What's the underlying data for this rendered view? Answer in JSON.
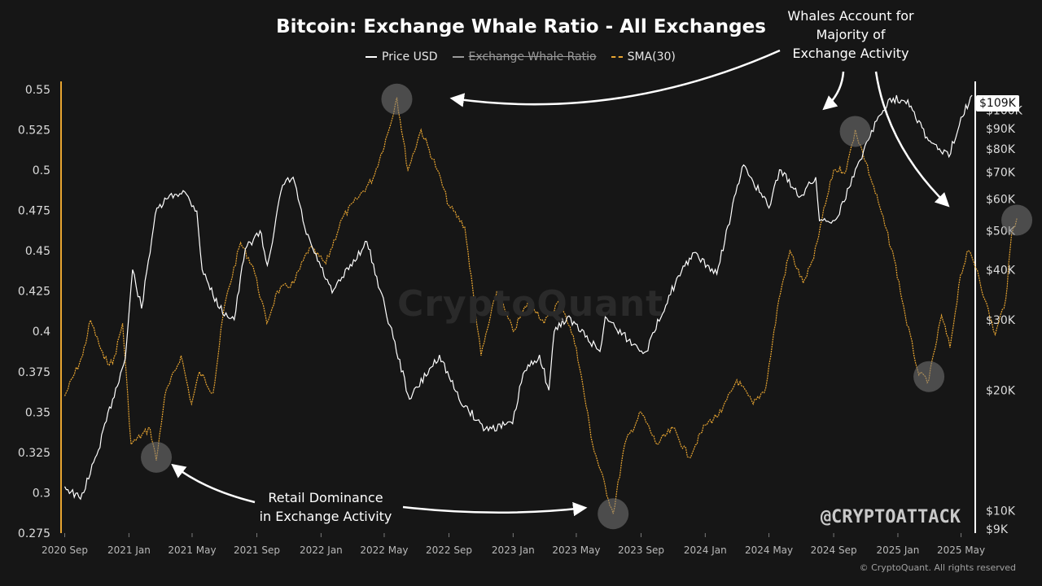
{
  "title": "Bitcoin: Exchange Whale Ratio - All Exchanges",
  "legend": [
    {
      "label": "Price USD",
      "style": "solid",
      "color": "#ffffff",
      "struck": false
    },
    {
      "label": "Exchange Whale Ratio",
      "style": "solid",
      "color": "#9a9a9a",
      "struck": true
    },
    {
      "label": "SMA(30)",
      "style": "dashed",
      "color": "#e8a531",
      "struck": false
    }
  ],
  "watermark": "CryptoQuant",
  "handle": "@CRYPTOATTACK",
  "copyright": "© CryptoQuant. All rights reserved",
  "current_price_label": "$109K",
  "annotations": {
    "whales_line1": "Whales Account for",
    "whales_line2": "Majority of",
    "whales_line3": "Exchange Activity",
    "retail_line1": "Retail Dominance",
    "retail_line2": "in Exchange Activity"
  },
  "colors": {
    "price": "#ffffff",
    "sma": "#e8a531",
    "axis_left": "#e8a531",
    "axis_right": "#ffffff",
    "highlight": "#7a7a7a"
  },
  "chart_data": {
    "type": "line",
    "title": "Bitcoin: Exchange Whale Ratio - All Exchanges",
    "x_ticks": [
      "2020 Sep",
      "2021 Jan",
      "2021 May",
      "2021 Sep",
      "2022 Jan",
      "2022 May",
      "2022 Sep",
      "2023 Jan",
      "2023 May",
      "2023 Sep",
      "2024 Jan",
      "2024 May",
      "2024 Sep",
      "2025 Jan",
      "2025 May"
    ],
    "x_range": [
      "2020-08-25",
      "2025-05-28"
    ],
    "y_left": {
      "ticks": [
        "0.55",
        "0.525",
        "0.5",
        "0.475",
        "0.45",
        "0.425",
        "0.4",
        "0.375",
        "0.35",
        "0.325",
        "0.3",
        "0.275"
      ],
      "ylim": [
        0.275,
        0.555
      ]
    },
    "y_right": {
      "scale": "log",
      "ticks": [
        "$100K",
        "$90K",
        "$80K",
        "$70K",
        "$60K",
        "$50K",
        "$40K",
        "$30K",
        "$20K",
        "$10K",
        "$9K"
      ],
      "tick_values": [
        100000,
        90000,
        80000,
        70000,
        60000,
        50000,
        40000,
        30000,
        20000,
        10000,
        9000
      ],
      "ylim": [
        8800,
        118000
      ]
    },
    "grid": false,
    "legend_position": "top-center",
    "series": [
      {
        "name": "Price USD",
        "axis": "right",
        "points": [
          [
            "2020-09-01",
            11500
          ],
          [
            "2020-10-01",
            10700
          ],
          [
            "2020-11-01",
            13800
          ],
          [
            "2020-12-01",
            19000
          ],
          [
            "2020-12-25",
            24000
          ],
          [
            "2021-01-08",
            40000
          ],
          [
            "2021-01-25",
            32000
          ],
          [
            "2021-02-20",
            55000
          ],
          [
            "2021-03-13",
            60000
          ],
          [
            "2021-04-14",
            63000
          ],
          [
            "2021-05-10",
            56000
          ],
          [
            "2021-05-20",
            40000
          ],
          [
            "2021-06-22",
            32000
          ],
          [
            "2021-07-20",
            30000
          ],
          [
            "2021-08-10",
            45000
          ],
          [
            "2021-09-07",
            50000
          ],
          [
            "2021-09-21",
            41000
          ],
          [
            "2021-10-20",
            65000
          ],
          [
            "2021-11-09",
            68000
          ],
          [
            "2021-12-04",
            49000
          ],
          [
            "2022-01-22",
            35000
          ],
          [
            "2022-03-29",
            47000
          ],
          [
            "2022-05-12",
            29000
          ],
          [
            "2022-06-18",
            19000
          ],
          [
            "2022-08-14",
            24500
          ],
          [
            "2022-09-20",
            19000
          ],
          [
            "2022-11-09",
            16000
          ],
          [
            "2022-12-31",
            16500
          ],
          [
            "2023-01-20",
            22000
          ],
          [
            "2023-02-20",
            24500
          ],
          [
            "2023-03-10",
            20000
          ],
          [
            "2023-03-20",
            28000
          ],
          [
            "2023-04-14",
            30500
          ],
          [
            "2023-06-15",
            25000
          ],
          [
            "2023-06-25",
            30500
          ],
          [
            "2023-08-17",
            26000
          ],
          [
            "2023-09-11",
            25000
          ],
          [
            "2023-10-24",
            34500
          ],
          [
            "2023-12-08",
            44000
          ],
          [
            "2024-01-23",
            39000
          ],
          [
            "2024-02-28",
            62000
          ],
          [
            "2024-03-14",
            73000
          ],
          [
            "2024-05-01",
            57000
          ],
          [
            "2024-05-21",
            71000
          ],
          [
            "2024-06-30",
            61000
          ],
          [
            "2024-07-29",
            68000
          ],
          [
            "2024-08-05",
            53000
          ],
          [
            "2024-09-06",
            53500
          ],
          [
            "2024-09-30",
            64000
          ],
          [
            "2024-11-12",
            89000
          ],
          [
            "2024-12-17",
            107000
          ],
          [
            "2025-01-20",
            106000
          ],
          [
            "2025-02-28",
            84000
          ],
          [
            "2025-04-08",
            76500
          ],
          [
            "2025-05-01",
            96000
          ],
          [
            "2025-05-22",
            109000
          ]
        ]
      },
      {
        "name": "SMA(30)",
        "axis": "left",
        "points": [
          [
            "2020-09-01",
            0.36
          ],
          [
            "2020-10-05",
            0.385
          ],
          [
            "2020-10-20",
            0.407
          ],
          [
            "2020-11-15",
            0.383
          ],
          [
            "2020-12-01",
            0.38
          ],
          [
            "2020-12-20",
            0.405
          ],
          [
            "2021-01-05",
            0.33
          ],
          [
            "2021-02-10",
            0.34
          ],
          [
            "2021-02-22",
            0.32
          ],
          [
            "2021-03-10",
            0.36
          ],
          [
            "2021-04-10",
            0.385
          ],
          [
            "2021-04-30",
            0.355
          ],
          [
            "2021-05-15",
            0.375
          ],
          [
            "2021-06-10",
            0.362
          ],
          [
            "2021-07-01",
            0.415
          ],
          [
            "2021-08-01",
            0.455
          ],
          [
            "2021-08-25",
            0.44
          ],
          [
            "2021-09-20",
            0.405
          ],
          [
            "2021-10-10",
            0.425
          ],
          [
            "2021-11-10",
            0.43
          ],
          [
            "2021-12-10",
            0.452
          ],
          [
            "2022-01-10",
            0.442
          ],
          [
            "2022-02-10",
            0.47
          ],
          [
            "2022-03-10",
            0.482
          ],
          [
            "2022-04-10",
            0.495
          ],
          [
            "2022-05-10",
            0.525
          ],
          [
            "2022-05-25",
            0.545
          ],
          [
            "2022-06-15",
            0.5
          ],
          [
            "2022-07-10",
            0.525
          ],
          [
            "2022-08-10",
            0.5
          ],
          [
            "2022-09-01",
            0.478
          ],
          [
            "2022-10-01",
            0.465
          ],
          [
            "2022-11-01",
            0.385
          ],
          [
            "2022-12-01",
            0.425
          ],
          [
            "2023-01-01",
            0.4
          ],
          [
            "2023-02-01",
            0.42
          ],
          [
            "2023-03-01",
            0.405
          ],
          [
            "2023-04-01",
            0.42
          ],
          [
            "2023-05-01",
            0.39
          ],
          [
            "2023-06-01",
            0.33
          ],
          [
            "2023-07-10",
            0.287
          ],
          [
            "2023-08-01",
            0.33
          ],
          [
            "2023-09-01",
            0.35
          ],
          [
            "2023-10-01",
            0.33
          ],
          [
            "2023-11-01",
            0.34
          ],
          [
            "2023-12-01",
            0.322
          ],
          [
            "2024-01-01",
            0.342
          ],
          [
            "2024-02-01",
            0.35
          ],
          [
            "2024-03-01",
            0.37
          ],
          [
            "2024-04-01",
            0.355
          ],
          [
            "2024-04-25",
            0.365
          ],
          [
            "2024-05-20",
            0.42
          ],
          [
            "2024-06-10",
            0.45
          ],
          [
            "2024-07-05",
            0.43
          ],
          [
            "2024-07-25",
            0.445
          ],
          [
            "2024-08-10",
            0.47
          ],
          [
            "2024-09-01",
            0.5
          ],
          [
            "2024-09-25",
            0.5
          ],
          [
            "2024-10-12",
            0.525
          ],
          [
            "2024-11-01",
            0.505
          ],
          [
            "2024-11-25",
            0.48
          ],
          [
            "2024-12-25",
            0.445
          ],
          [
            "2025-01-15",
            0.41
          ],
          [
            "2025-02-10",
            0.373
          ],
          [
            "2025-03-01",
            0.37
          ],
          [
            "2025-03-25",
            0.41
          ],
          [
            "2025-04-10",
            0.39
          ],
          [
            "2025-04-30",
            0.435
          ],
          [
            "2025-05-15",
            0.45
          ],
          [
            "2025-06-01",
            0.438
          ],
          [
            "2025-06-15",
            0.42
          ],
          [
            "2025-07-05",
            0.398
          ],
          [
            "2025-07-25",
            0.42
          ],
          [
            "2025-08-05",
            0.46
          ],
          [
            "2025-08-15",
            0.47
          ]
        ]
      }
    ],
    "highlights": [
      {
        "date": "2021-02-22",
        "value": 0.322,
        "label_ref": "retail"
      },
      {
        "date": "2022-05-25",
        "value": 0.544,
        "label_ref": "whales"
      },
      {
        "date": "2023-07-10",
        "value": 0.287,
        "label_ref": "retail"
      },
      {
        "date": "2024-10-12",
        "value": 0.524,
        "label_ref": "whales"
      },
      {
        "date": "2025-03-01",
        "value": 0.372,
        "label_ref": "retail"
      },
      {
        "date": "2025-08-15",
        "value": 0.469,
        "label_ref": "whales"
      }
    ]
  }
}
